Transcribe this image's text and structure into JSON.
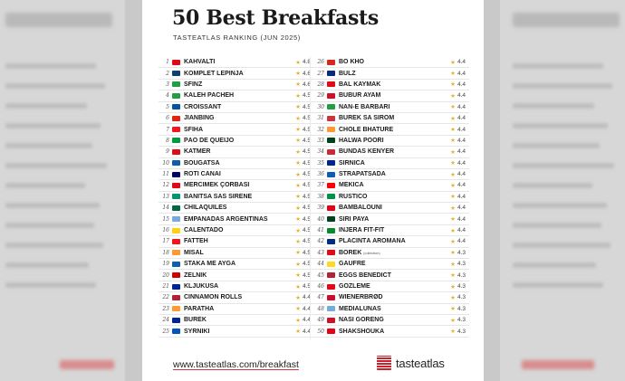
{
  "header": {
    "title": "50 Best Breakfasts",
    "subtitle": "TASTEATLAS RANKING (JUN 2025)"
  },
  "icons": {
    "rating": "star-icon",
    "brand": "tasteatlas-logo-icon"
  },
  "colors": {
    "star": "#e2b53a",
    "brand_red": "#c8232c"
  },
  "rankings": {
    "left": [
      {
        "rank": "1",
        "dish": "KAHVALTI",
        "score": "4.8",
        "flag": "#e30a17"
      },
      {
        "rank": "2",
        "dish": "KOMPLET LEPINJA",
        "score": "4.6",
        "flag": "#0c4076"
      },
      {
        "rank": "3",
        "dish": "SFINZ",
        "score": "4.6",
        "flag": "#239e46"
      },
      {
        "rank": "4",
        "dish": "KALEH PACHEH",
        "score": "4.5",
        "flag": "#239f40"
      },
      {
        "rank": "5",
        "dish": "CROISSANT",
        "score": "4.5",
        "flag": "#0055a4"
      },
      {
        "rank": "6",
        "dish": "JIANBING",
        "score": "4.5",
        "flag": "#de2910"
      },
      {
        "rank": "7",
        "dish": "SFIHA",
        "score": "4.5",
        "flag": "#ee161f"
      },
      {
        "rank": "8",
        "dish": "PÃO DE QUEIJO",
        "score": "4.5",
        "flag": "#009c3b"
      },
      {
        "rank": "9",
        "dish": "KATMER",
        "score": "4.5",
        "flag": "#e30a17"
      },
      {
        "rank": "10",
        "dish": "BOUGATSA",
        "score": "4.5",
        "flag": "#0d5eaf"
      },
      {
        "rank": "11",
        "dish": "ROTI CANAI",
        "score": "4.5",
        "flag": "#010066"
      },
      {
        "rank": "12",
        "dish": "MERCIMEK ÇORBASI",
        "score": "4.5",
        "flag": "#e30a17"
      },
      {
        "rank": "13",
        "dish": "BANITSA SAS SIRENE",
        "score": "4.5",
        "flag": "#00966e"
      },
      {
        "rank": "14",
        "dish": "CHILAQUILES",
        "score": "4.5",
        "flag": "#006847"
      },
      {
        "rank": "15",
        "dish": "EMPANADAS ARGENTINAS",
        "score": "4.5",
        "flag": "#74acdf"
      },
      {
        "rank": "16",
        "dish": "CALENTADO",
        "score": "4.5",
        "flag": "#fcd116"
      },
      {
        "rank": "17",
        "dish": "FATTEH",
        "score": "4.5",
        "flag": "#ee161f"
      },
      {
        "rank": "18",
        "dish": "MISAL",
        "score": "4.5",
        "flag": "#ff9933"
      },
      {
        "rank": "19",
        "dish": "STAKA ME AYGA",
        "score": "4.5",
        "flag": "#0d5eaf"
      },
      {
        "rank": "20",
        "dish": "ZELNIK",
        "score": "4.5",
        "flag": "#d20000"
      },
      {
        "rank": "21",
        "dish": "KLJUKUŠA",
        "score": "4.5",
        "flag": "#002395"
      },
      {
        "rank": "22",
        "dish": "CINNAMON ROLLS",
        "score": "4.4",
        "flag": "#b22234"
      },
      {
        "rank": "23",
        "dish": "PARATHA",
        "score": "4.4",
        "flag": "#ff9933"
      },
      {
        "rank": "24",
        "dish": "BUREK",
        "score": "4.4",
        "flag": "#002395"
      },
      {
        "rank": "25",
        "dish": "SYRNIKI",
        "score": "4.4",
        "flag": "#0057b7"
      }
    ],
    "right": [
      {
        "rank": "26",
        "dish": "BÒ KHO",
        "score": "4.4",
        "flag": "#da251d",
        "note": ""
      },
      {
        "rank": "27",
        "dish": "BULZ",
        "score": "4.4",
        "flag": "#002b7f",
        "note": ""
      },
      {
        "rank": "28",
        "dish": "BAL KAYMAK",
        "score": "4.4",
        "flag": "#e30a17",
        "note": ""
      },
      {
        "rank": "29",
        "dish": "BUBUR AYAM",
        "score": "4.4",
        "flag": "#ce1126",
        "note": ""
      },
      {
        "rank": "30",
        "dish": "NAN-E BARBARI",
        "score": "4.4",
        "flag": "#239f40",
        "note": ""
      },
      {
        "rank": "31",
        "dish": "BUREK SA SIROM",
        "score": "4.4",
        "flag": "#c6363c",
        "note": ""
      },
      {
        "rank": "32",
        "dish": "CHOLE BHATURE",
        "score": "4.4",
        "flag": "#ff9933",
        "note": ""
      },
      {
        "rank": "33",
        "dish": "HALWA POORI",
        "score": "4.4",
        "flag": "#01411c",
        "note": ""
      },
      {
        "rank": "34",
        "dish": "BUNDÁS KENYÉR",
        "score": "4.4",
        "flag": "#ce2939",
        "note": ""
      },
      {
        "rank": "35",
        "dish": "SIRNICA",
        "score": "4.4",
        "flag": "#002395",
        "note": ""
      },
      {
        "rank": "36",
        "dish": "STRAPATSADA",
        "score": "4.4",
        "flag": "#0d5eaf",
        "note": ""
      },
      {
        "rank": "37",
        "dish": "MEKICA",
        "score": "4.4",
        "flag": "#ff0000",
        "note": ""
      },
      {
        "rank": "38",
        "dish": "RUSTICO",
        "score": "4.4",
        "flag": "#009246",
        "note": ""
      },
      {
        "rank": "39",
        "dish": "BAMBALOUNI",
        "score": "4.4",
        "flag": "#e70013",
        "note": ""
      },
      {
        "rank": "40",
        "dish": "SIRI PAYA",
        "score": "4.4",
        "flag": "#01411c",
        "note": ""
      },
      {
        "rank": "41",
        "dish": "INJERA FIT-FIT",
        "score": "4.4",
        "flag": "#078930",
        "note": ""
      },
      {
        "rank": "42",
        "dish": "PLĂCINTĂ AROMÂNĂ",
        "score": "4.4",
        "flag": "#002b7f",
        "note": ""
      },
      {
        "rank": "43",
        "dish": "BÖREK",
        "score": "4.3",
        "flag": "#e30a17",
        "note": "(collection)"
      },
      {
        "rank": "44",
        "dish": "GAUFRE",
        "score": "4.3",
        "flag": "#fdda24",
        "note": ""
      },
      {
        "rank": "45",
        "dish": "EGGS BENEDICT",
        "score": "4.3",
        "flag": "#b22234",
        "note": ""
      },
      {
        "rank": "46",
        "dish": "GÖZLEME",
        "score": "4.3",
        "flag": "#e30a17",
        "note": ""
      },
      {
        "rank": "47",
        "dish": "WIENERBRØD",
        "score": "4.3",
        "flag": "#c8102e",
        "note": ""
      },
      {
        "rank": "48",
        "dish": "MEDIALUNAS",
        "score": "4.3",
        "flag": "#74acdf",
        "note": ""
      },
      {
        "rank": "49",
        "dish": "NASI GORENG",
        "score": "4.3",
        "flag": "#ce1126",
        "note": ""
      },
      {
        "rank": "50",
        "dish": "SHAKSHOUKA",
        "score": "4.3",
        "flag": "#e70013",
        "note": ""
      }
    ]
  },
  "footer": {
    "url": "www.tasteatlas.com/breakfast",
    "brand": "tasteatlas"
  }
}
